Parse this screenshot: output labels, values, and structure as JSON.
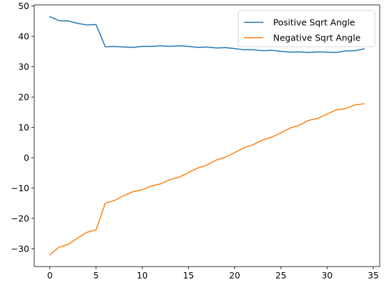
{
  "chart_data": {
    "type": "line",
    "title": "",
    "xlabel": "",
    "ylabel": "",
    "xlim": [
      -1.7,
      35.7
    ],
    "ylim": [
      -35.9,
      50.4
    ],
    "xticks": [
      0,
      5,
      10,
      15,
      20,
      25,
      30,
      35
    ],
    "yticks": [
      -30,
      -20,
      -10,
      0,
      10,
      20,
      30,
      40,
      50
    ],
    "grid": false,
    "legend_position": "upper right",
    "x": [
      0,
      1,
      2,
      3,
      4,
      5,
      6,
      7,
      8,
      9,
      10,
      11,
      12,
      13,
      14,
      15,
      16,
      17,
      18,
      19,
      20,
      21,
      22,
      23,
      24,
      25,
      26,
      27,
      28,
      29,
      30,
      31,
      32,
      33,
      34
    ],
    "series": [
      {
        "name": "Positive Sqrt Angle",
        "color": "#1f77b4",
        "values": [
          46.5,
          45.2,
          45.1,
          44.3,
          43.8,
          43.9,
          36.6,
          36.7,
          36.5,
          36.4,
          36.7,
          36.7,
          36.9,
          36.7,
          36.9,
          36.7,
          36.4,
          36.5,
          36.2,
          36.3,
          36.0,
          35.6,
          35.6,
          35.3,
          35.4,
          35.1,
          34.8,
          34.9,
          34.7,
          34.9,
          34.8,
          34.7,
          35.2,
          35.3,
          35.9
        ]
      },
      {
        "name": "Negative Sqrt Angle",
        "color": "#ff7f0e",
        "values": [
          -32.0,
          -29.5,
          -28.6,
          -26.5,
          -24.6,
          -23.8,
          -15.0,
          -14.1,
          -12.5,
          -11.2,
          -10.6,
          -9.3,
          -8.6,
          -7.2,
          -6.4,
          -4.9,
          -3.4,
          -2.4,
          -0.8,
          0.2,
          1.7,
          3.3,
          4.3,
          5.8,
          6.8,
          8.2,
          9.8,
          10.7,
          12.3,
          13.0,
          14.4,
          15.8,
          16.2,
          17.4,
          17.8
        ]
      }
    ]
  }
}
